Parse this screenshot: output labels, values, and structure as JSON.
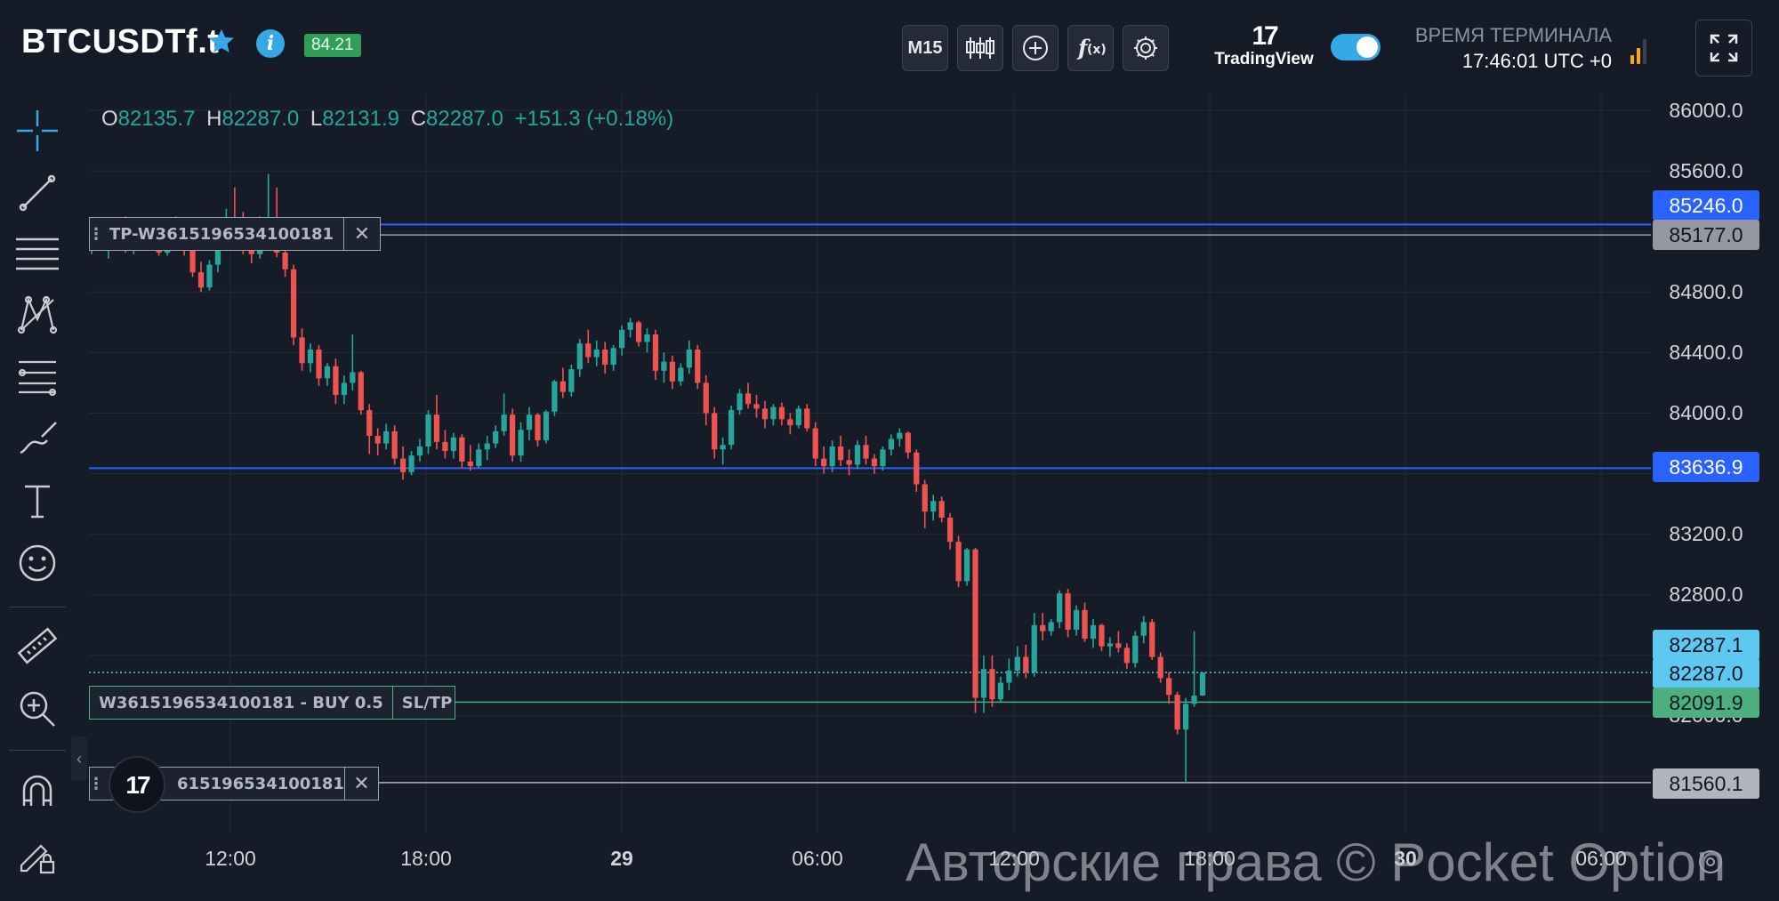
{
  "header": {
    "symbol": "BTCUSDTf.t",
    "payout_badge": "84.21",
    "timeframe_label": "M15",
    "tradingview_label": "TradingView",
    "terminal_time_label": "ВРЕМЯ ТЕРМИНАЛА",
    "terminal_time_value": "17:46:01 UTC +0",
    "toggle_on": true
  },
  "icons": {
    "favorite": "star-icon",
    "info": "info-icon",
    "candles": "candles-icon",
    "add": "plus-circle-icon",
    "indicators": "function-icon",
    "settings": "gear-icon",
    "fullscreen": "fullscreen-icon",
    "signal": "signal-bars-icon"
  },
  "toolbar": {
    "tools": [
      "crosshair-icon",
      "trend-line-icon",
      "parallel-lines-icon",
      "pattern-icon",
      "fib-levels-icon",
      "brush-icon",
      "text-icon",
      "emoji-icon",
      "ruler-icon",
      "zoom-in-icon",
      "magnet-icon",
      "lock-pencil-icon"
    ],
    "collapse_label": "‹"
  },
  "ohlc": {
    "o_label": "O",
    "o": "82135.7",
    "h_label": "H",
    "h": "82287.0",
    "l_label": "L",
    "l": "82131.9",
    "c_label": "C",
    "c": "82287.0",
    "change": "+151.3 (+0.18%)"
  },
  "price_axis": {
    "ticks": [
      "86000.0",
      "85600.0",
      "84800.0",
      "84400.0",
      "84000.0",
      "83200.0",
      "82800.0",
      "82000.0"
    ]
  },
  "price_labels": [
    {
      "value": "85246.0",
      "bg": "#2962ff",
      "fg": "#ffffff"
    },
    {
      "value": "85177.0",
      "bg": "#9598a1",
      "fg": "#131722"
    },
    {
      "value": "83636.9",
      "bg": "#2962ff",
      "fg": "#ffffff"
    },
    {
      "value": "82287.1",
      "bg": "#5ec8f0",
      "fg": "#131722"
    },
    {
      "value": "82287.0",
      "bg": "#5ec8f0",
      "fg": "#131722"
    },
    {
      "value": "82091.9",
      "bg": "#4caf7d",
      "fg": "#131722"
    },
    {
      "value": "81560.1",
      "bg": "#b2b5be",
      "fg": "#131722"
    }
  ],
  "time_axis": {
    "ticks": [
      "12:00",
      "18:00",
      "29",
      "06:00",
      "12:00",
      "18:00",
      "30",
      "06:00"
    ]
  },
  "orders": {
    "tp_label": "TP-W3615196534100181",
    "entry_label": "W3615196534100181 - BUY 0.5",
    "sltp_label": "SL/TP",
    "sl_label": "615196534100181",
    "close_glyph": "✕"
  },
  "watermark": "Авторские права © Pocket Option",
  "colors": {
    "up": "#26a69a",
    "down": "#ef5350",
    "background": "#161b28",
    "accent_blue": "#2962ff"
  },
  "chart_data": {
    "type": "candlestick",
    "timeframe": "M15",
    "ylim": [
      81450,
      86150
    ],
    "horizontal_lines": [
      85246.0,
      85177.0,
      83636.9,
      82287.0,
      82091.9,
      81560.1
    ],
    "candles_ohlc": [
      [
        85120,
        85230,
        85050,
        85160
      ],
      [
        85160,
        85260,
        85080,
        85110
      ],
      [
        85110,
        85180,
        85020,
        85150
      ],
      [
        85150,
        85290,
        85120,
        85240
      ],
      [
        85240,
        85300,
        85060,
        85100
      ],
      [
        85100,
        85200,
        85050,
        85170
      ],
      [
        85170,
        85230,
        85090,
        85130
      ],
      [
        85130,
        85260,
        85110,
        85210
      ],
      [
        85210,
        85280,
        85040,
        85060
      ],
      [
        85060,
        85190,
        85040,
        85170
      ],
      [
        85170,
        85300,
        85130,
        85230
      ],
      [
        85230,
        85250,
        85040,
        85080
      ],
      [
        85080,
        85120,
        84900,
        84930
      ],
      [
        84930,
        85000,
        84800,
        84830
      ],
      [
        84830,
        85010,
        84810,
        84980
      ],
      [
        84980,
        85160,
        84930,
        85100
      ],
      [
        85100,
        85350,
        85070,
        85290
      ],
      [
        85290,
        85490,
        85200,
        85230
      ],
      [
        85230,
        85330,
        85050,
        85090
      ],
      [
        85090,
        85160,
        84990,
        85050
      ],
      [
        85050,
        85300,
        85020,
        85220
      ],
      [
        85220,
        85580,
        85180,
        85270
      ],
      [
        85270,
        85490,
        85030,
        85060
      ],
      [
        85060,
        85100,
        84900,
        84950
      ],
      [
        84950,
        84980,
        84450,
        84500
      ],
      [
        84500,
        84560,
        84280,
        84330
      ],
      [
        84330,
        84460,
        84270,
        84420
      ],
      [
        84420,
        84450,
        84180,
        84230
      ],
      [
        84230,
        84330,
        84180,
        84310
      ],
      [
        84310,
        84360,
        84060,
        84120
      ],
      [
        84120,
        84250,
        84060,
        84200
      ],
      [
        84200,
        84520,
        84150,
        84270
      ],
      [
        84270,
        84280,
        83990,
        84020
      ],
      [
        84020,
        84060,
        83730,
        83850
      ],
      [
        83850,
        83900,
        83720,
        83800
      ],
      [
        83800,
        83930,
        83760,
        83880
      ],
      [
        83880,
        83920,
        83660,
        83700
      ],
      [
        83700,
        83780,
        83560,
        83610
      ],
      [
        83610,
        83750,
        83590,
        83720
      ],
      [
        83720,
        83830,
        83680,
        83780
      ],
      [
        83780,
        84020,
        83730,
        83990
      ],
      [
        83990,
        84120,
        83760,
        83810
      ],
      [
        83810,
        83890,
        83700,
        83750
      ],
      [
        83750,
        83870,
        83700,
        83840
      ],
      [
        83840,
        83860,
        83640,
        83680
      ],
      [
        83680,
        83790,
        83620,
        83650
      ],
      [
        83650,
        83800,
        83640,
        83760
      ],
      [
        83760,
        83850,
        83690,
        83800
      ],
      [
        83800,
        83920,
        83770,
        83880
      ],
      [
        83880,
        84130,
        83850,
        83990
      ],
      [
        83990,
        84030,
        83680,
        83720
      ],
      [
        83720,
        83940,
        83680,
        83890
      ],
      [
        83890,
        84040,
        83820,
        83990
      ],
      [
        83990,
        84000,
        83780,
        83820
      ],
      [
        83820,
        84020,
        83800,
        84010
      ],
      [
        84010,
        84220,
        83980,
        84210
      ],
      [
        84210,
        84300,
        84100,
        84140
      ],
      [
        84140,
        84320,
        84110,
        84290
      ],
      [
        84290,
        84490,
        84240,
        84460
      ],
      [
        84460,
        84550,
        84330,
        84370
      ],
      [
        84370,
        84480,
        84310,
        84420
      ],
      [
        84420,
        84470,
        84260,
        84320
      ],
      [
        84320,
        84450,
        84280,
        84430
      ],
      [
        84430,
        84580,
        84380,
        84550
      ],
      [
        84550,
        84630,
        84500,
        84600
      ],
      [
        84600,
        84610,
        84440,
        84470
      ],
      [
        84470,
        84560,
        84400,
        84520
      ],
      [
        84520,
        84550,
        84220,
        84280
      ],
      [
        84280,
        84400,
        84200,
        84340
      ],
      [
        84340,
        84380,
        84160,
        84210
      ],
      [
        84210,
        84330,
        84180,
        84300
      ],
      [
        84300,
        84480,
        84260,
        84420
      ],
      [
        84420,
        84450,
        84160,
        84200
      ],
      [
        84200,
        84250,
        83920,
        84000
      ],
      [
        84000,
        84040,
        83700,
        83760
      ],
      [
        83760,
        83840,
        83660,
        83790
      ],
      [
        83790,
        84050,
        83760,
        84020
      ],
      [
        84020,
        84160,
        83990,
        84130
      ],
      [
        84130,
        84200,
        84030,
        84060
      ],
      [
        84060,
        84120,
        83970,
        84030
      ],
      [
        84030,
        84080,
        83900,
        83960
      ],
      [
        83960,
        84060,
        83920,
        84040
      ],
      [
        84040,
        84070,
        83920,
        83960
      ],
      [
        83960,
        84000,
        83860,
        83920
      ],
      [
        83920,
        84050,
        83900,
        84030
      ],
      [
        84030,
        84060,
        83880,
        83900
      ],
      [
        83900,
        83940,
        83650,
        83700
      ],
      [
        83700,
        83780,
        83600,
        83650
      ],
      [
        83650,
        83820,
        83610,
        83780
      ],
      [
        83780,
        83850,
        83650,
        83690
      ],
      [
        83690,
        83760,
        83590,
        83660
      ],
      [
        83660,
        83820,
        83630,
        83790
      ],
      [
        83790,
        83850,
        83660,
        83700
      ],
      [
        83700,
        83730,
        83600,
        83650
      ],
      [
        83650,
        83780,
        83620,
        83760
      ],
      [
        83760,
        83860,
        83720,
        83830
      ],
      [
        83830,
        83900,
        83780,
        83870
      ],
      [
        83870,
        83880,
        83700,
        83740
      ],
      [
        83740,
        83760,
        83480,
        83530
      ],
      [
        83530,
        83560,
        83240,
        83350
      ],
      [
        83350,
        83460,
        83290,
        83420
      ],
      [
        83420,
        83450,
        83280,
        83310
      ],
      [
        83310,
        83340,
        83100,
        83150
      ],
      [
        83150,
        83190,
        82850,
        82890
      ],
      [
        82890,
        83110,
        82860,
        83100
      ],
      [
        83100,
        83110,
        82020,
        82120
      ],
      [
        82120,
        82400,
        82020,
        82310
      ],
      [
        82310,
        82400,
        82060,
        82110
      ],
      [
        82110,
        82260,
        82090,
        82220
      ],
      [
        82220,
        82380,
        82170,
        82300
      ],
      [
        82300,
        82460,
        82260,
        82390
      ],
      [
        82390,
        82470,
        82250,
        82290
      ],
      [
        82290,
        82680,
        82260,
        82600
      ],
      [
        82600,
        82680,
        82500,
        82560
      ],
      [
        82560,
        82640,
        82530,
        82620
      ],
      [
        82620,
        82830,
        82580,
        82810
      ],
      [
        82810,
        82840,
        82520,
        82570
      ],
      [
        82570,
        82730,
        82530,
        82700
      ],
      [
        82700,
        82750,
        82490,
        82510
      ],
      [
        82510,
        82640,
        82450,
        82600
      ],
      [
        82600,
        82610,
        82430,
        82460
      ],
      [
        82460,
        82520,
        82390,
        82480
      ],
      [
        82480,
        82560,
        82420,
        82450
      ],
      [
        82450,
        82480,
        82310,
        82350
      ],
      [
        82350,
        82560,
        82320,
        82530
      ],
      [
        82530,
        82660,
        82480,
        82620
      ],
      [
        82620,
        82640,
        82370,
        82390
      ],
      [
        82390,
        82420,
        82220,
        82250
      ],
      [
        82250,
        82290,
        82080,
        82140
      ],
      [
        82140,
        82160,
        81880,
        81910
      ],
      [
        81910,
        82120,
        81560,
        82080
      ],
      [
        82080,
        82560,
        82060,
        82135
      ],
      [
        82135.7,
        82287.0,
        82131.9,
        82287.0
      ]
    ]
  }
}
